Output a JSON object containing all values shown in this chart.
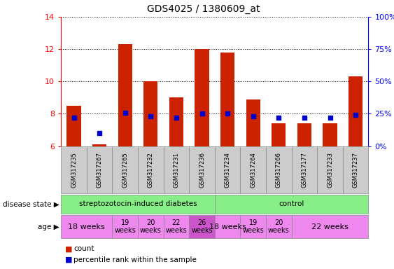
{
  "title": "GDS4025 / 1380609_at",
  "samples": [
    "GSM317235",
    "GSM317267",
    "GSM317265",
    "GSM317232",
    "GSM317231",
    "GSM317236",
    "GSM317234",
    "GSM317264",
    "GSM317266",
    "GSM317177",
    "GSM317233",
    "GSM317237"
  ],
  "count_values": [
    8.5,
    6.1,
    12.3,
    10.0,
    9.0,
    12.0,
    11.8,
    8.9,
    7.4,
    7.4,
    7.4,
    10.3
  ],
  "percentile_values": [
    22,
    10,
    26,
    23,
    22,
    25,
    25,
    23,
    22,
    22,
    22,
    24
  ],
  "count_base": 6.0,
  "ylim_left": [
    6,
    14
  ],
  "ylim_right": [
    0,
    100
  ],
  "yticks_left": [
    6,
    8,
    10,
    12,
    14
  ],
  "yticks_right": [
    0,
    25,
    50,
    75,
    100
  ],
  "ytick_labels_right": [
    "0%",
    "25%",
    "50%",
    "75%",
    "100%"
  ],
  "bar_color": "#cc2200",
  "dot_color": "#0000cc",
  "bg_color": "#ffffff",
  "plot_bg_color": "#ffffff",
  "sample_bg_color": "#cccccc",
  "disease_groups": [
    {
      "label": "streptozotocin-induced diabetes",
      "start": 0,
      "end": 5,
      "color": "#88ee88"
    },
    {
      "label": "control",
      "start": 6,
      "end": 11,
      "color": "#88ee88"
    }
  ],
  "age_groups": [
    {
      "label": "18 weeks",
      "start": 0,
      "end": 1,
      "color": "#ee88ee",
      "fs": 8
    },
    {
      "label": "19\nweeks",
      "start": 2,
      "end": 2,
      "color": "#ee88ee",
      "fs": 7
    },
    {
      "label": "20\nweeks",
      "start": 3,
      "end": 3,
      "color": "#ee88ee",
      "fs": 7
    },
    {
      "label": "22\nweeks",
      "start": 4,
      "end": 4,
      "color": "#ee88ee",
      "fs": 7
    },
    {
      "label": "26\nweeks",
      "start": 5,
      "end": 5,
      "color": "#cc55cc",
      "fs": 7
    },
    {
      "label": "18 weeks",
      "start": 6,
      "end": 6,
      "color": "#ee88ee",
      "fs": 8
    },
    {
      "label": "19\nweeks",
      "start": 7,
      "end": 7,
      "color": "#ee88ee",
      "fs": 7
    },
    {
      "label": "20\nweeks",
      "start": 8,
      "end": 8,
      "color": "#ee88ee",
      "fs": 7
    },
    {
      "label": "22 weeks",
      "start": 9,
      "end": 11,
      "color": "#ee88ee",
      "fs": 8
    }
  ],
  "legend_items": [
    {
      "label": "count",
      "color": "#cc2200"
    },
    {
      "label": "percentile rank within the sample",
      "color": "#0000cc"
    }
  ]
}
